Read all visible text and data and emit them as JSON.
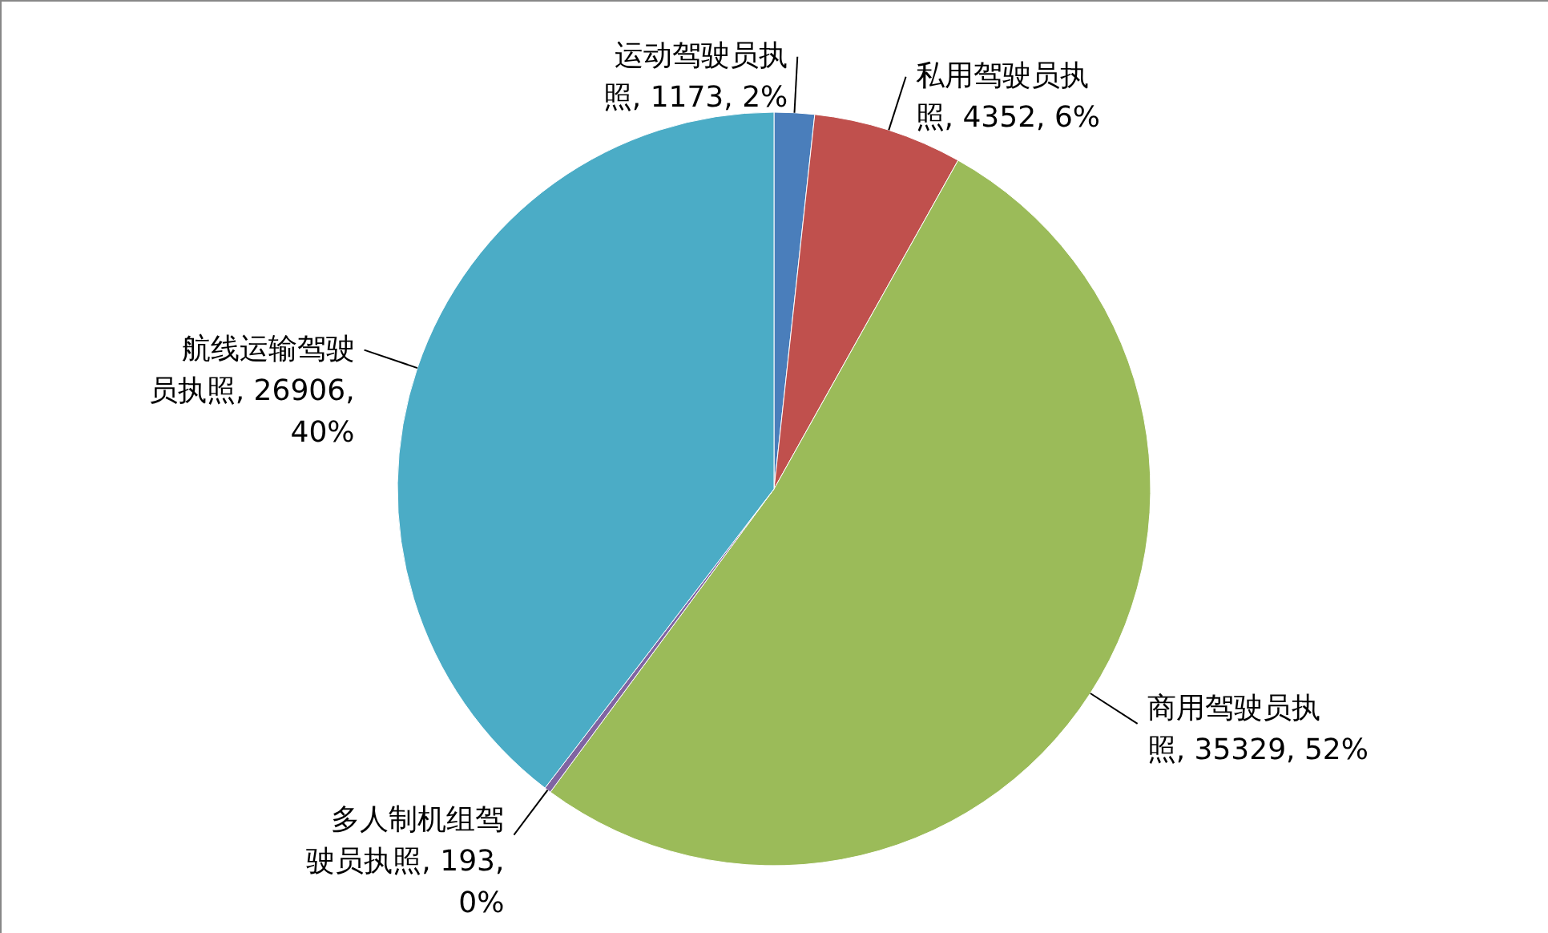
{
  "chart_data": {
    "type": "pie",
    "categories": [
      "运动驾驶员执照",
      "私用驾驶员执照",
      "商用驾驶员执照",
      "多人制机组驾驶员执照",
      "航线运输驾驶员执照"
    ],
    "values": [
      1173,
      4352,
      35329,
      193,
      26906
    ],
    "value_labels": [
      "1173, 2%",
      "4352, 6%",
      "35329, 52%",
      "193, 0%",
      "26906, 40%"
    ],
    "colors": [
      "#4a7ebb",
      "#c0504d",
      "#9bbb59",
      "#8064a2",
      "#4bacc6"
    ]
  }
}
